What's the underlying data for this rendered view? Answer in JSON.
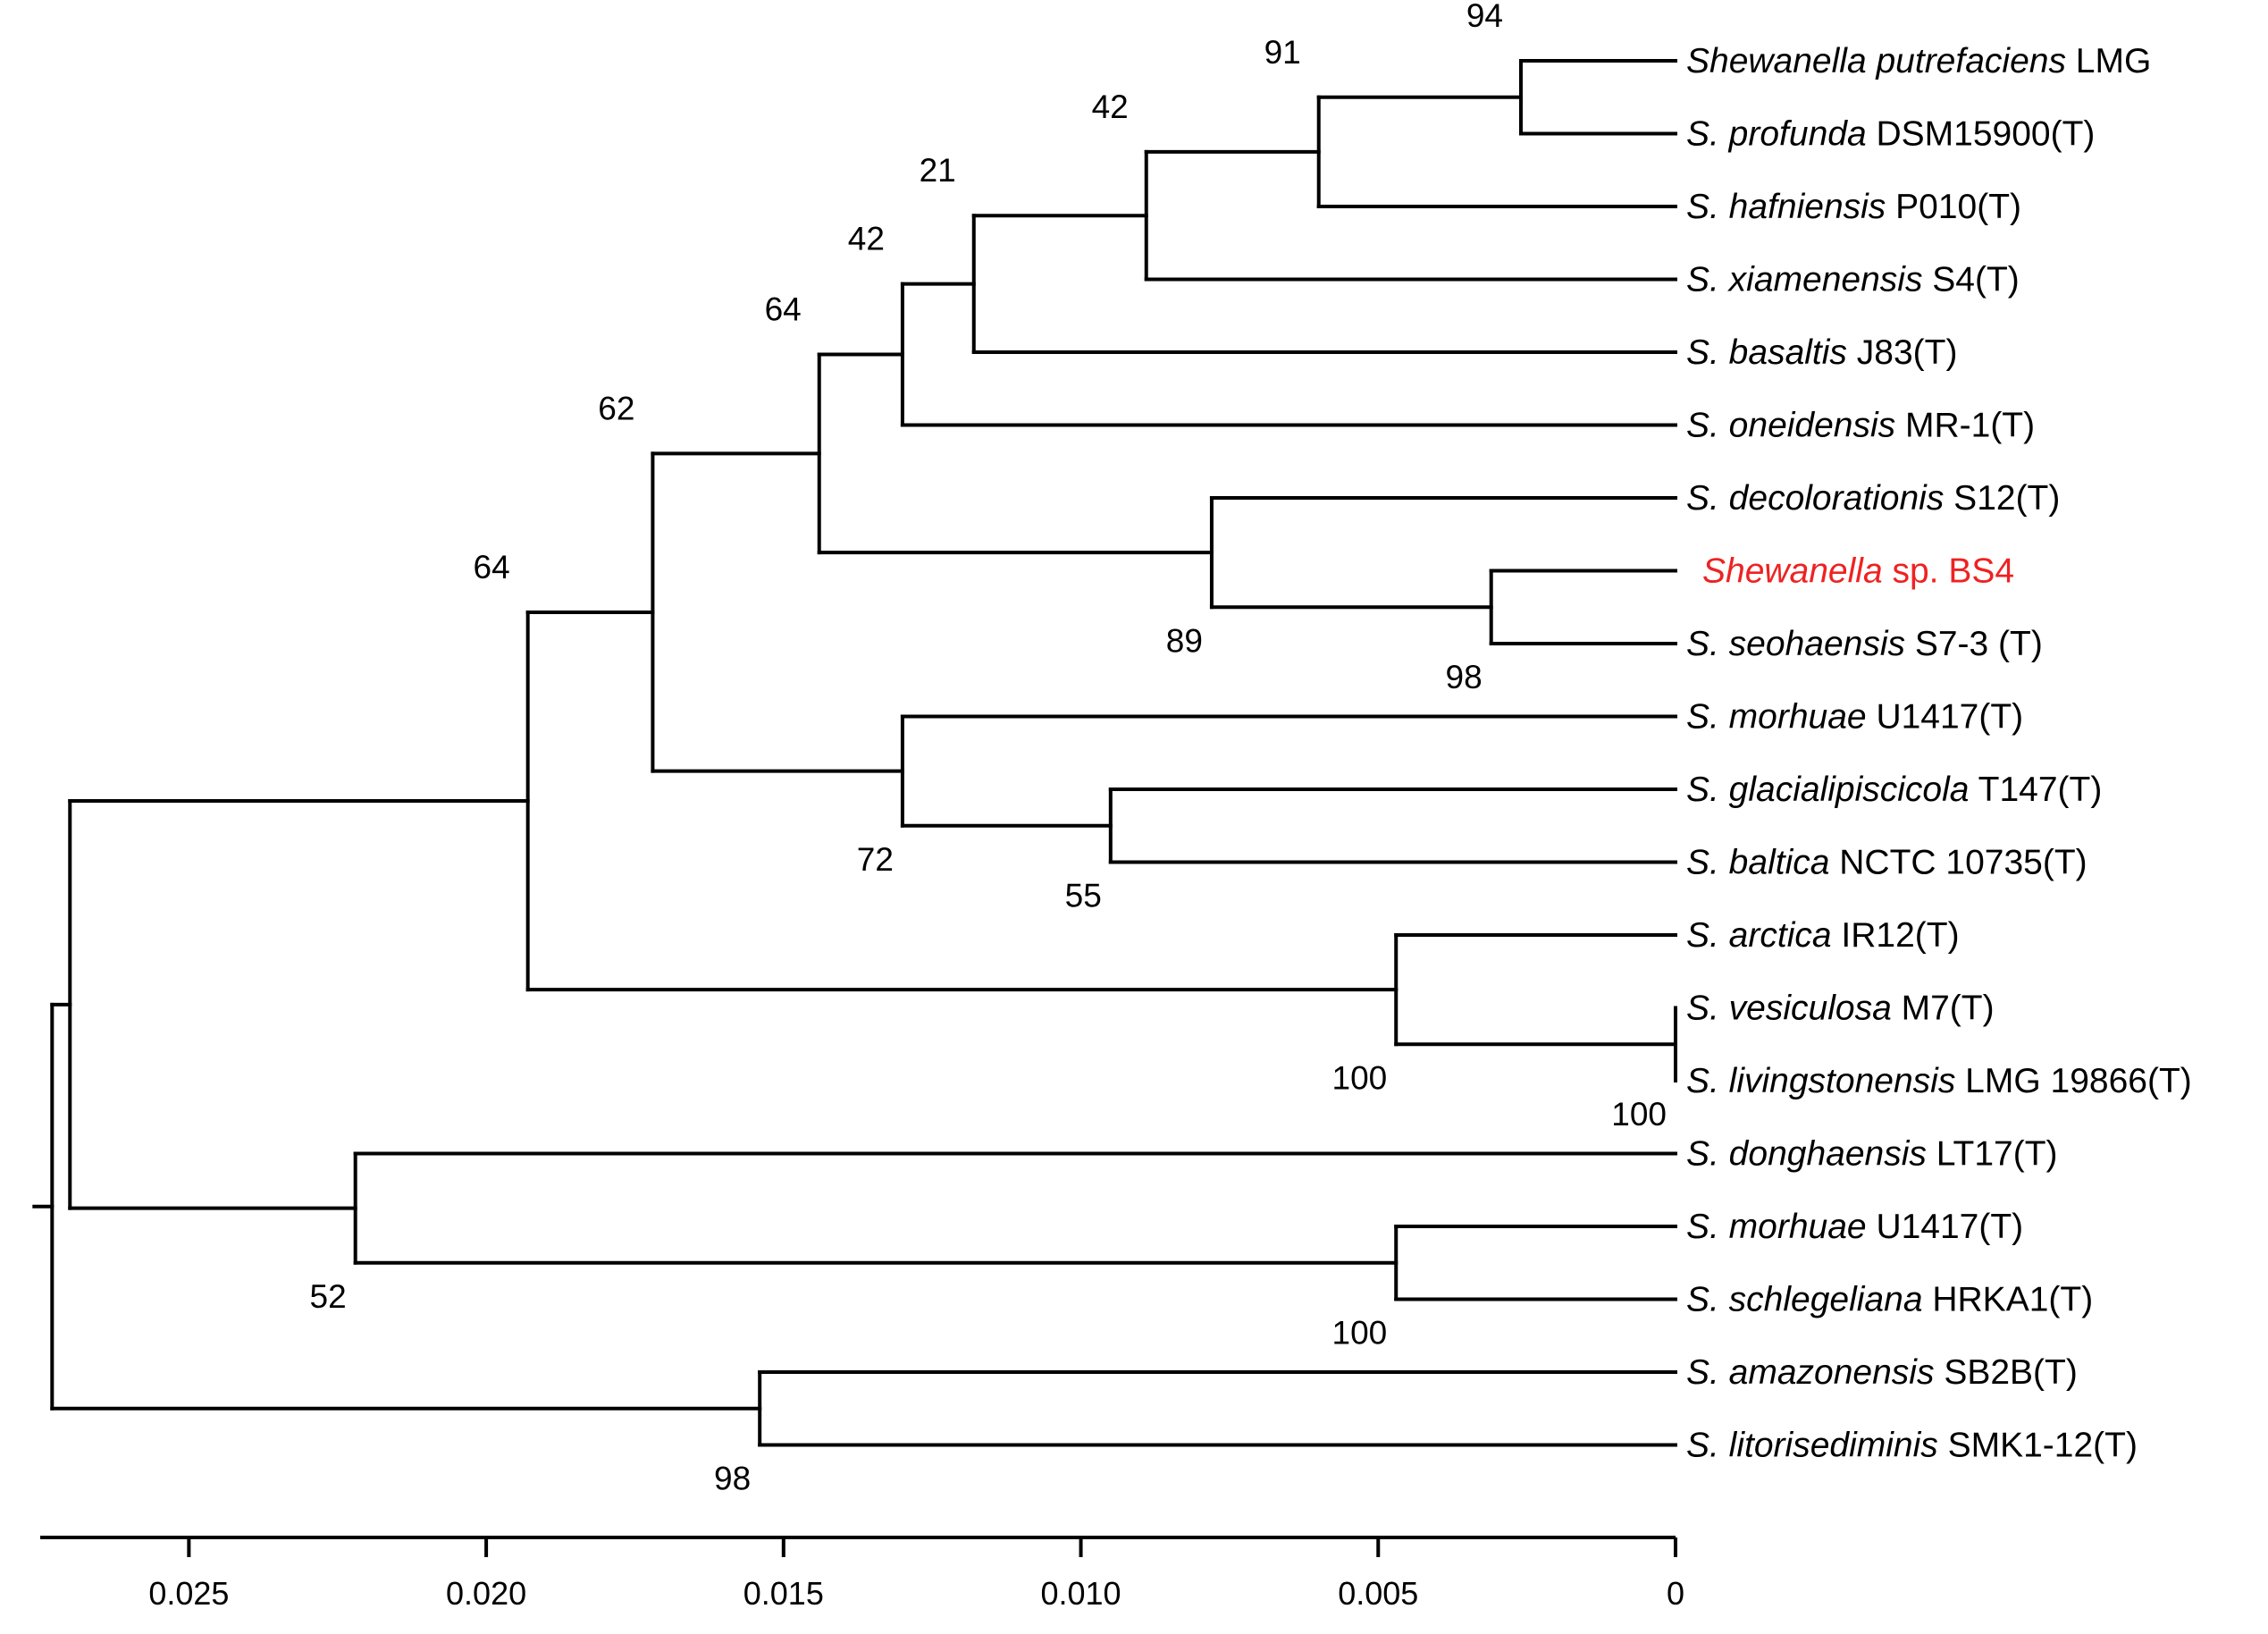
{
  "tree": {
    "leaves": [
      {
        "id": "L1",
        "genus": "Shewanella putrefaciens",
        "strain": "LMG"
      },
      {
        "id": "L2",
        "genus": "S. profunda",
        "strain": "DSM15900(T)"
      },
      {
        "id": "L3",
        "genus": "S. hafniensis",
        "strain": "P010(T)"
      },
      {
        "id": "L4",
        "genus": "S. xiamenensis",
        "strain": "S4(T)"
      },
      {
        "id": "L5",
        "genus": "S. basaltis",
        "strain": "J83(T)"
      },
      {
        "id": "L6",
        "genus": "S. oneidensis",
        "strain": "MR-1(T)"
      },
      {
        "id": "L7",
        "genus": "S. decolorationis",
        "strain": "S12(T)"
      },
      {
        "id": "L8",
        "genus": "Shewanella",
        "strain": "sp. BS4",
        "highlight": true
      },
      {
        "id": "L9",
        "genus": "S. seohaensis",
        "strain": "S7-3 (T)"
      },
      {
        "id": "L10",
        "genus": "S. morhuae",
        "strain": "U1417(T)"
      },
      {
        "id": "L11",
        "genus": "S. glacialipiscicola",
        "strain": "T147(T)"
      },
      {
        "id": "L12",
        "genus": "S. baltica",
        "strain": "NCTC 10735(T)"
      },
      {
        "id": "L13",
        "genus": "S. arctica",
        "strain": "IR12(T)"
      },
      {
        "id": "L14",
        "genus": "S. vesiculosa",
        "strain": "M7(T)"
      },
      {
        "id": "L15",
        "genus": "S. livingstonensis",
        "strain": "LMG 19866(T)"
      },
      {
        "id": "L16",
        "genus": "S. donghaensis",
        "strain": "LT17(T)"
      },
      {
        "id": "L17",
        "genus": "S. morhuae",
        "strain": "U1417(T)"
      },
      {
        "id": "L18",
        "genus": "S. schlegeliana",
        "strain": "HRKA1(T)"
      },
      {
        "id": "L19",
        "genus": "S. amazonensis",
        "strain": "SB2B(T)"
      },
      {
        "id": "L20",
        "genus": "S. litorisediminis",
        "strain": "SMK1-12(T)"
      }
    ],
    "nodes": [
      {
        "id": "n1",
        "children": [
          "L1",
          "L2"
        ],
        "bootstrap": "94"
      },
      {
        "id": "n2",
        "children": [
          "n1",
          "L3"
        ],
        "bootstrap": "91"
      },
      {
        "id": "n3",
        "children": [
          "n2",
          "L4"
        ],
        "bootstrap": "42"
      },
      {
        "id": "n4",
        "children": [
          "n3",
          "L5"
        ],
        "bootstrap": "21"
      },
      {
        "id": "n5",
        "children": [
          "n4",
          "L6"
        ],
        "bootstrap": "42"
      },
      {
        "id": "n6",
        "children": [
          "L8",
          "L9"
        ],
        "bootstrap": "98"
      },
      {
        "id": "n7",
        "children": [
          "L7",
          "n6"
        ],
        "bootstrap": "89"
      },
      {
        "id": "n8",
        "children": [
          "n5",
          "n7"
        ],
        "bootstrap": "64"
      },
      {
        "id": "n9",
        "children": [
          "L11",
          "L12"
        ],
        "bootstrap": "55"
      },
      {
        "id": "n10",
        "children": [
          "L10",
          "n9"
        ],
        "bootstrap": "72"
      },
      {
        "id": "n11",
        "children": [
          "n8",
          "n10"
        ],
        "bootstrap": "62"
      },
      {
        "id": "n12",
        "children": [
          "L14",
          "L15"
        ],
        "bootstrap": "100"
      },
      {
        "id": "n13",
        "children": [
          "L13",
          "n12"
        ],
        "bootstrap": "100"
      },
      {
        "id": "n14",
        "children": [
          "n11",
          "n13"
        ],
        "bootstrap": "64"
      },
      {
        "id": "n15",
        "children": [
          "L17",
          "L18"
        ],
        "bootstrap": "100"
      },
      {
        "id": "n16",
        "children": [
          "L16",
          "n15"
        ],
        "bootstrap": "52"
      },
      {
        "id": "n17",
        "children": [
          "n14",
          "n16"
        ],
        "bootstrap": ""
      },
      {
        "id": "n18",
        "children": [
          "L19",
          "L20"
        ],
        "bootstrap": "98"
      },
      {
        "id": "root",
        "children": [
          "n17",
          "n18"
        ],
        "bootstrap": ""
      }
    ],
    "node_distance": {
      "n1": 0.0026,
      "n2": 0.006,
      "n3": 0.0089,
      "n4": 0.0118,
      "n5": 0.013,
      "n6": 0.0031,
      "n7": 0.0078,
      "n8": 0.0144,
      "n9": 0.0095,
      "n10": 0.013,
      "n11": 0.0172,
      "n12": 0.0,
      "n13": 0.0047,
      "n14": 0.0193,
      "n15": 0.0047,
      "n16": 0.0222,
      "n17": 0.027,
      "n18": 0.0154,
      "root": 0.0273
    },
    "leaf_distance": 0.0
  },
  "axis": {
    "min": 0,
    "max": 0.0275,
    "reversed": true,
    "ticks": [
      {
        "value": 0.025,
        "label": "0.025"
      },
      {
        "value": 0.02,
        "label": "0.020"
      },
      {
        "value": 0.015,
        "label": "0.015"
      },
      {
        "value": 0.01,
        "label": "0.010"
      },
      {
        "value": 0.005,
        "label": "0.005"
      },
      {
        "value": 0,
        "label": "0"
      }
    ]
  },
  "colors": {
    "branch": "#000000",
    "highlight": "#ee2222"
  }
}
